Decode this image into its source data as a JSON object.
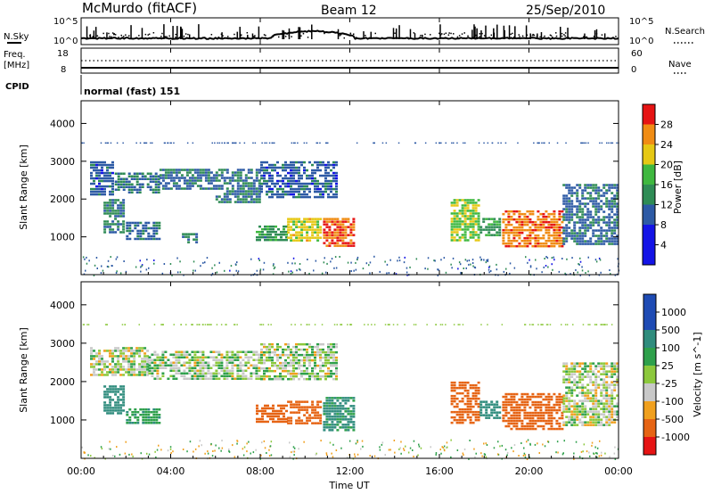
{
  "header": {
    "station": "McMurdo (fitACF)",
    "beam": "Beam 12",
    "date": "25/Sep/2010"
  },
  "noise_panel": {
    "left_label": "N.Sky",
    "right_label": "N.Search",
    "left_ticks": [
      "10^5",
      "10^0"
    ],
    "right_ticks": [
      "10^5",
      "10^0"
    ]
  },
  "freq_panel": {
    "left_label_1": "Freq.",
    "left_label_2": "[MHz]",
    "right_label": "Nave",
    "left_ticks": [
      "18",
      "8"
    ],
    "right_ticks": [
      "60",
      "0"
    ]
  },
  "cpid_panel": {
    "label": "CPID",
    "value": "normal (fast) 151"
  },
  "x_axis": {
    "label": "Time UT",
    "ticks": [
      "00:00",
      "04:00",
      "08:00",
      "12:00",
      "16:00",
      "20:00",
      "00:00"
    ]
  },
  "colors": {
    "power": [
      "#1414e6",
      "#2d5aa5",
      "#2f8c55",
      "#3fb83f",
      "#e6c814",
      "#f08c14",
      "#e61414"
    ],
    "velocity": [
      "#1e4bb4",
      "#2f8c7d",
      "#2ea04b",
      "#8cc83c",
      "#c8c8c8",
      "#f0a01e",
      "#e66414",
      "#e61414"
    ]
  },
  "chart_data": [
    {
      "type": "heatmap",
      "name": "power",
      "xlabel": "Time UT",
      "ylabel": "Slant Range [km]",
      "xlim_hours": [
        0,
        24
      ],
      "ylim": [
        0,
        4600
      ],
      "yticks": [
        "1000",
        "2000",
        "3000",
        "4000"
      ],
      "colorbar_label": "Power [dB]",
      "colorbar_ticks": [
        "4",
        "8",
        "12",
        "16",
        "20",
        "24",
        "28"
      ],
      "colorbar_range": [
        0,
        32
      ],
      "regions": [
        {
          "t": [
            0.4,
            1.5
          ],
          "r": [
            2100,
            3000
          ],
          "v": 7
        },
        {
          "t": [
            1.5,
            3.5
          ],
          "r": [
            2100,
            2700
          ],
          "v": 9
        },
        {
          "t": [
            3.5,
            6.0
          ],
          "r": [
            2200,
            2800
          ],
          "v": 8
        },
        {
          "t": [
            6.0,
            8.0
          ],
          "r": [
            1900,
            2800
          ],
          "v": 9
        },
        {
          "t": [
            8.0,
            11.5
          ],
          "r": [
            2000,
            3000
          ],
          "v": 7
        },
        {
          "t": [
            1.0,
            2.0
          ],
          "r": [
            1100,
            2000
          ],
          "v": 10
        },
        {
          "t": [
            2.0,
            3.5
          ],
          "r": [
            900,
            1400
          ],
          "v": 8
        },
        {
          "t": [
            4.5,
            5.2
          ],
          "r": [
            800,
            1100
          ],
          "v": 10
        },
        {
          "t": [
            7.8,
            9.2
          ],
          "r": [
            900,
            1300
          ],
          "v": 12
        },
        {
          "t": [
            9.2,
            10.8
          ],
          "r": [
            850,
            1500
          ],
          "v": 20
        },
        {
          "t": [
            10.8,
            12.2
          ],
          "r": [
            700,
            1500
          ],
          "v": 27
        },
        {
          "t": [
            16.5,
            17.8
          ],
          "r": [
            900,
            2000
          ],
          "v": 18
        },
        {
          "t": [
            17.8,
            18.8
          ],
          "r": [
            1000,
            1500
          ],
          "v": 12
        },
        {
          "t": [
            18.8,
            21.5
          ],
          "r": [
            700,
            1700
          ],
          "v": 26
        },
        {
          "t": [
            21.5,
            24.0
          ],
          "r": [
            800,
            2400
          ],
          "v": 8
        }
      ]
    },
    {
      "type": "heatmap",
      "name": "velocity",
      "xlabel": "Time UT",
      "ylabel": "Slant Range [km]",
      "xlim_hours": [
        0,
        24
      ],
      "ylim": [
        0,
        4600
      ],
      "yticks": [
        "1000",
        "2000",
        "3000",
        "4000"
      ],
      "colorbar_label": "Velocity [m s^-1]",
      "colorbar_ticks": [
        "1000",
        "500",
        "100",
        "25",
        "-25",
        "-100",
        "-500",
        "-1000"
      ],
      "colorbar_range": [
        -1000,
        1000
      ],
      "regions": [
        {
          "t": [
            0.4,
            3.0
          ],
          "r": [
            2100,
            2900
          ],
          "v": 0
        },
        {
          "t": [
            3.0,
            8.0
          ],
          "r": [
            2000,
            2800
          ],
          "v": 10
        },
        {
          "t": [
            8.0,
            11.5
          ],
          "r": [
            2000,
            3000
          ],
          "v": 5
        },
        {
          "t": [
            1.0,
            2.0
          ],
          "r": [
            1100,
            1900
          ],
          "v": 150
        },
        {
          "t": [
            2.0,
            3.5
          ],
          "r": [
            900,
            1300
          ],
          "v": 80
        },
        {
          "t": [
            7.8,
            9.2
          ],
          "r": [
            900,
            1400
          ],
          "v": -150
        },
        {
          "t": [
            9.2,
            10.8
          ],
          "r": [
            850,
            1500
          ],
          "v": -250
        },
        {
          "t": [
            10.8,
            12.2
          ],
          "r": [
            700,
            1600
          ],
          "v": 120
        },
        {
          "t": [
            16.5,
            17.8
          ],
          "r": [
            900,
            2000
          ],
          "v": -300
        },
        {
          "t": [
            17.8,
            18.8
          ],
          "r": [
            1000,
            1500
          ],
          "v": 200
        },
        {
          "t": [
            18.8,
            21.5
          ],
          "r": [
            700,
            1700
          ],
          "v": -200
        },
        {
          "t": [
            21.5,
            24.0
          ],
          "r": [
            800,
            2500
          ],
          "v": 0
        }
      ]
    }
  ]
}
